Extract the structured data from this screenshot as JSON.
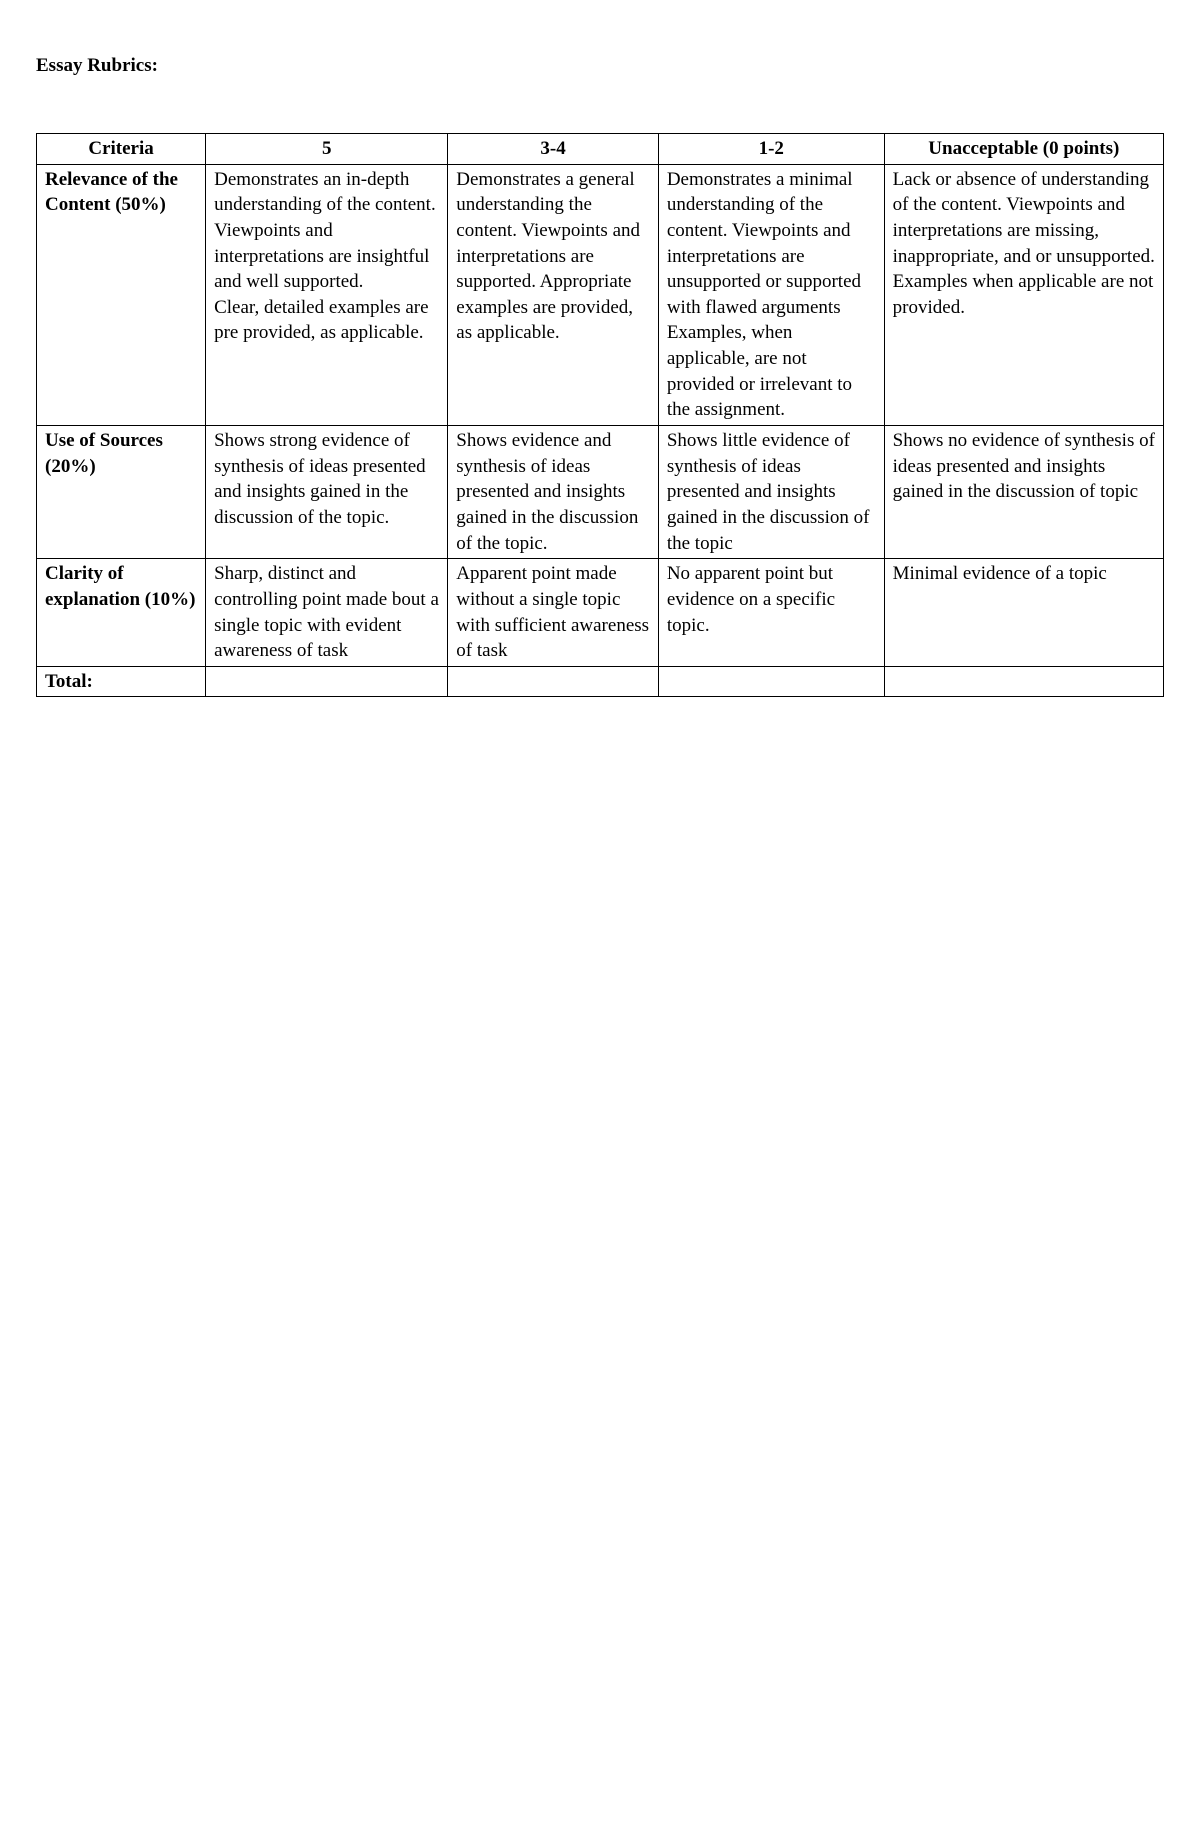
{
  "title": "Essay Rubrics:",
  "table": {
    "headers": {
      "criteria": "Criteria",
      "level5": "5",
      "level34": "3-4",
      "level12": "1-2",
      "level0": "Unacceptable (0 points)"
    },
    "rows": [
      {
        "criteria": "Relevance of the Content (50%)",
        "level5": "Demonstrates an in-depth understanding of the content. Viewpoints and interpretations are insightful and well supported.\nClear, detailed examples are pre provided, as applicable.",
        "level34": "Demonstrates a general understanding the content. Viewpoints and interpretations are supported. Appropriate examples are provided, as applicable.",
        "level12": "Demonstrates a minimal understanding of the content. Viewpoints and interpretations are unsupported or supported with flawed arguments Examples, when applicable, are not provided or irrelevant to the assignment.",
        "level0": "Lack or absence of understanding of the content. Viewpoints and interpretations are missing, inappropriate, and or unsupported. Examples when applicable are not provided."
      },
      {
        "criteria": "Use of Sources (20%)",
        "level5": "Shows strong evidence of synthesis of ideas presented and insights gained in the discussion of the topic.",
        "level34": "Shows evidence and synthesis of ideas presented and insights gained in the discussion of the topic.",
        "level12": "Shows little evidence of synthesis of ideas presented and insights gained in the discussion of the topic",
        "level0": "Shows no evidence of synthesis of ideas presented and insights gained in the discussion of topic"
      },
      {
        "criteria": "Clarity of explanation (10%)",
        "level5": "Sharp, distinct and controlling point made bout a single topic with evident awareness of task",
        "level34": "Apparent point made without a single topic with sufficient awareness of task",
        "level12": "No apparent point but evidence on a specific topic.",
        "level0": "Minimal evidence of a topic"
      },
      {
        "criteria": "Total:",
        "level5": "",
        "level34": "",
        "level12": "",
        "level0": ""
      }
    ]
  }
}
